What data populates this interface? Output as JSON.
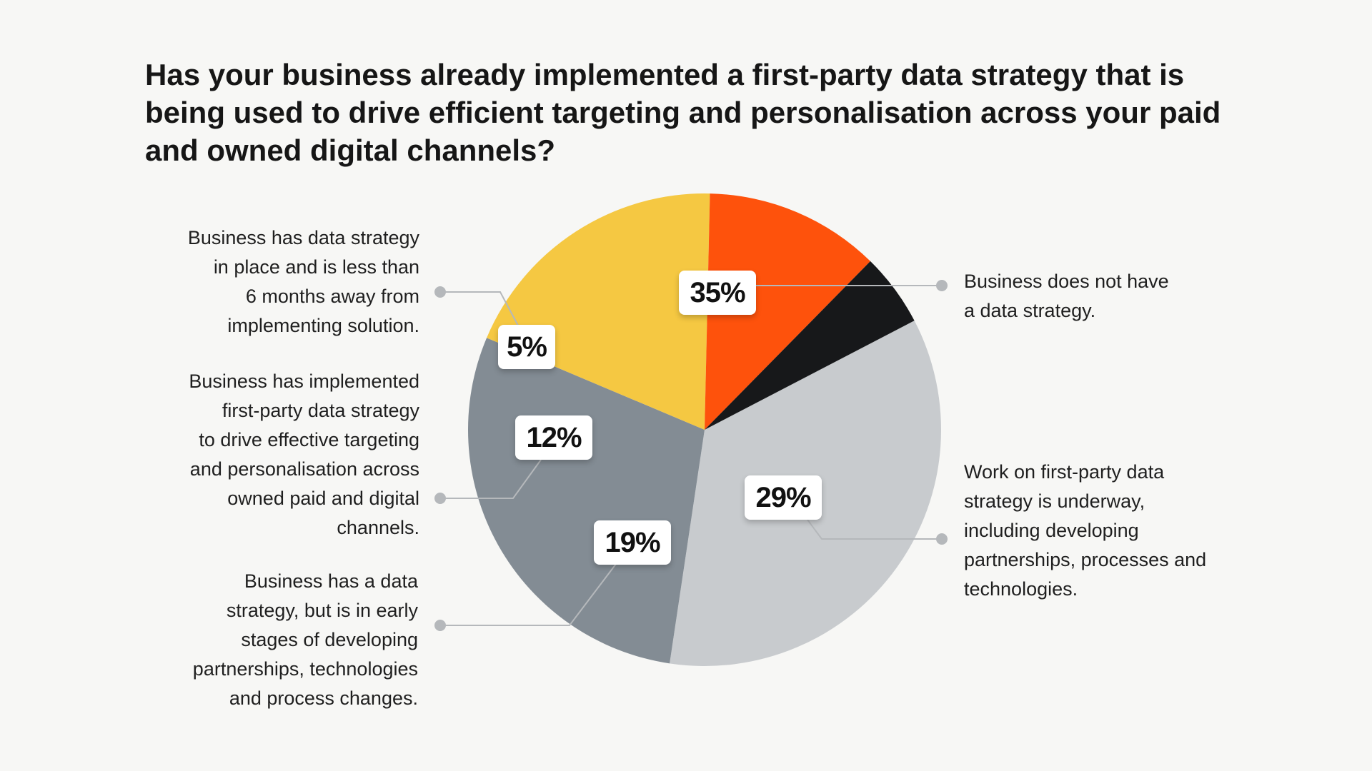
{
  "chart_data": {
    "type": "pie",
    "title": "Has your business already implemented a first-party data strategy that is being used to drive efficient targeting and personalisation across your paid and owned digital channels?",
    "slices": [
      {
        "label": "Business does not have a data strategy.",
        "value": 35,
        "value_label": "35%",
        "color": "#c8cbce"
      },
      {
        "label": "Work on first-party data strategy is underway, including developing partnerships, processes and technologies.",
        "value": 29,
        "value_label": "29%",
        "color": "#838c94"
      },
      {
        "label": "Business has a data strategy, but is in early stages of developing partnerships, technologies and process changes.",
        "value": 19,
        "value_label": "19%",
        "color": "#f5c842"
      },
      {
        "label": "Business has implemented first-party data strategy to drive effective targeting and personalisation across owned paid and digital channels.",
        "value": 12,
        "value_label": "12%",
        "color": "#fe520c"
      },
      {
        "label": "Business has data strategy in place and is less than 6 months away from implementing solution.",
        "value": 5,
        "value_label": "5%",
        "color": "#17181a"
      }
    ],
    "label_lines": {
      "s0": [
        "Business does not have",
        "a data strategy."
      ],
      "s1": [
        "Work on first-party data",
        "strategy is underway,",
        "including developing",
        "partnerships, processes and",
        "technologies."
      ],
      "s2": [
        "Business has a data",
        "strategy, but is in early",
        "stages of developing",
        "partnerships, technologies",
        "and process changes."
      ],
      "s3": [
        "Business has implemented",
        "first-party data strategy",
        "to drive effective targeting",
        "and personalisation across",
        "owned paid and digital",
        "channels."
      ],
      "s4": [
        "Business has data strategy",
        "in place and is less than",
        "6 months away from",
        "implementing solution."
      ]
    },
    "leader_color": "#b5b8bb"
  }
}
